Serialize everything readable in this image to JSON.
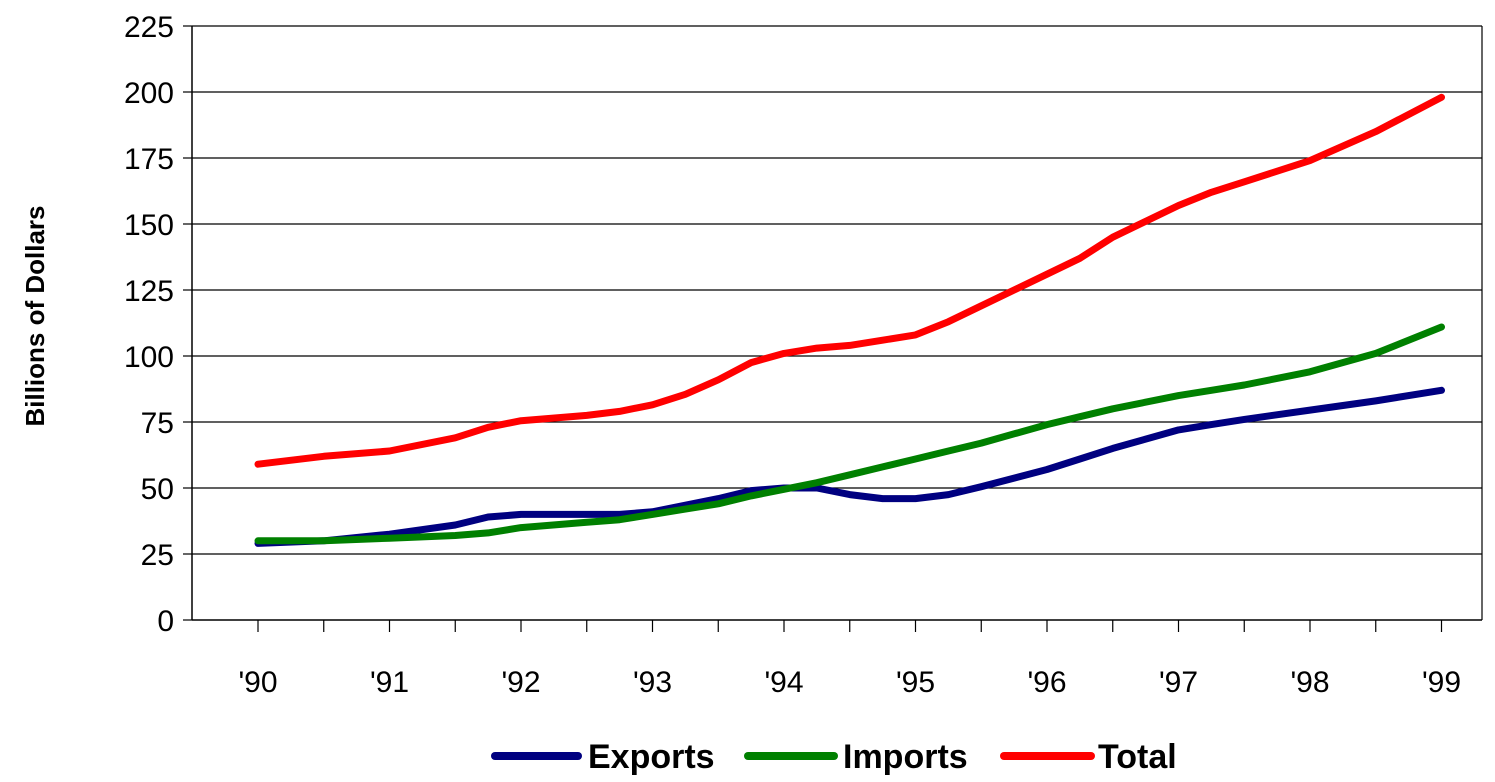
{
  "chart_data": {
    "type": "line",
    "ylabel": "Billions of Dollars",
    "ylim": [
      0,
      225
    ],
    "y_ticks": [
      0,
      25,
      50,
      75,
      100,
      125,
      150,
      175,
      200,
      225
    ],
    "grid": "horizontal",
    "legend_position": "bottom",
    "categories": [
      "'90",
      "'91",
      "'92",
      "'93",
      "'94",
      "'95",
      "'96",
      "'97",
      "'98",
      "'99"
    ],
    "x": [
      1990,
      1990.5,
      1991,
      1991.5,
      1991.75,
      1992,
      1992.5,
      1992.75,
      1993,
      1993.25,
      1993.5,
      1993.75,
      1994,
      1994.25,
      1994.5,
      1994.75,
      1995,
      1995.25,
      1995.5,
      1996,
      1996.25,
      1996.5,
      1997,
      1997.25,
      1997.5,
      1998,
      1998.5,
      1999
    ],
    "series": [
      {
        "name": "Exports",
        "color": "#000080",
        "values": [
          29,
          30,
          32.5,
          36,
          39,
          40,
          40,
          40,
          41,
          43.5,
          46,
          49,
          50,
          50,
          47.5,
          46,
          46,
          47.5,
          50.5,
          57,
          61,
          65,
          72,
          74,
          76,
          79.5,
          83,
          87
        ]
      },
      {
        "name": "Imports",
        "color": "#008000",
        "values": [
          30,
          30,
          31,
          32,
          33,
          35,
          37,
          38,
          40,
          42,
          44,
          47,
          49.5,
          52,
          55,
          58,
          61,
          64,
          67,
          74,
          77,
          80,
          85,
          87,
          89,
          94,
          101,
          111
        ]
      },
      {
        "name": "Total",
        "color": "#ff0000",
        "values": [
          59,
          62,
          64,
          69,
          73,
          75.5,
          77.5,
          79,
          81.5,
          85.5,
          91,
          97.5,
          101,
          103,
          104,
          106,
          108,
          113,
          119,
          131,
          137,
          145,
          157,
          162,
          166,
          174,
          185,
          198
        ]
      }
    ]
  }
}
